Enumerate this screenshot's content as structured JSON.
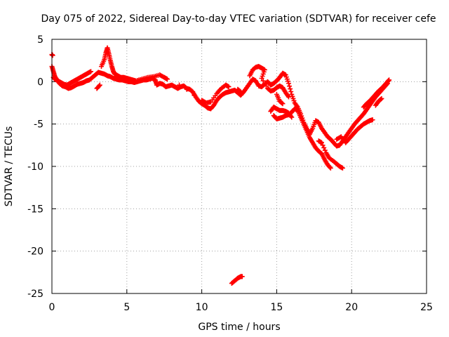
{
  "chart_data": {
    "type": "scatter",
    "title": "Day 075 of 2022, Sidereal Day-to-day VTEC variation (SDTVAR) for receiver cefe",
    "xlabel": "GPS time / hours",
    "ylabel": "SDTVAR / TECUs",
    "xlim": [
      0,
      25
    ],
    "ylim": [
      -25,
      5
    ],
    "x_ticks": [
      0,
      5,
      10,
      15,
      20,
      25
    ],
    "y_ticks": [
      5,
      0,
      -5,
      -10,
      -15,
      -20,
      -25
    ],
    "grid": true,
    "marker": "plus",
    "series_color": "#ff0000",
    "series": [
      {
        "name": "main trace",
        "points": [
          [
            0.0,
            1.8
          ],
          [
            0.1,
            1.2
          ],
          [
            0.2,
            0.6
          ],
          [
            0.35,
            0.2
          ],
          [
            0.5,
            -0.2
          ],
          [
            0.7,
            -0.5
          ],
          [
            0.9,
            -0.6
          ],
          [
            1.1,
            -0.8
          ],
          [
            1.3,
            -0.7
          ],
          [
            1.5,
            -0.5
          ],
          [
            1.7,
            -0.3
          ],
          [
            1.9,
            -0.2
          ],
          [
            2.1,
            -0.1
          ],
          [
            2.3,
            0.1
          ],
          [
            2.5,
            0.2
          ],
          [
            2.7,
            0.5
          ],
          [
            2.9,
            0.8
          ],
          [
            3.1,
            1.1
          ],
          [
            3.3,
            1.0
          ],
          [
            3.5,
            0.9
          ],
          [
            3.7,
            0.7
          ],
          [
            3.9,
            0.6
          ],
          [
            4.1,
            0.4
          ],
          [
            4.3,
            0.3
          ],
          [
            4.5,
            0.2
          ],
          [
            4.7,
            0.2
          ],
          [
            4.9,
            0.1
          ],
          [
            5.1,
            0.0
          ],
          [
            5.3,
            0.0
          ],
          [
            5.5,
            -0.1
          ],
          [
            5.7,
            0.0
          ],
          [
            5.9,
            0.1
          ],
          [
            6.1,
            0.2
          ],
          [
            6.3,
            0.2
          ],
          [
            6.5,
            0.3
          ],
          [
            6.7,
            0.4
          ],
          [
            6.9,
            0.2
          ],
          [
            7.0,
            -0.4
          ],
          [
            7.2,
            -0.2
          ],
          [
            7.4,
            -0.3
          ],
          [
            7.6,
            -0.6
          ],
          [
            7.8,
            -0.5
          ],
          [
            8.0,
            -0.4
          ],
          [
            8.2,
            -0.6
          ],
          [
            8.4,
            -0.8
          ],
          [
            8.6,
            -0.6
          ],
          [
            8.8,
            -0.5
          ],
          [
            9.0,
            -0.8
          ],
          [
            9.2,
            -0.9
          ],
          [
            9.4,
            -1.2
          ],
          [
            9.6,
            -1.8
          ],
          [
            9.8,
            -2.3
          ],
          [
            10.0,
            -2.6
          ],
          [
            10.2,
            -2.8
          ],
          [
            10.4,
            -3.1
          ],
          [
            10.6,
            -3.2
          ],
          [
            10.8,
            -2.8
          ],
          [
            11.0,
            -2.2
          ],
          [
            11.2,
            -1.8
          ],
          [
            11.4,
            -1.5
          ],
          [
            11.6,
            -1.3
          ],
          [
            11.8,
            -1.2
          ],
          [
            12.0,
            -1.1
          ],
          [
            12.2,
            -1.0
          ],
          [
            12.4,
            -1.3
          ],
          [
            12.6,
            -1.6
          ],
          [
            12.8,
            -1.2
          ],
          [
            13.0,
            -0.7
          ],
          [
            13.2,
            -0.2
          ],
          [
            13.4,
            0.3
          ],
          [
            13.6,
            0.1
          ],
          [
            13.8,
            -0.5
          ],
          [
            14.0,
            -0.6
          ],
          [
            14.2,
            -0.3
          ],
          [
            14.4,
            0.0
          ],
          [
            14.6,
            -0.4
          ],
          [
            14.8,
            -0.2
          ],
          [
            15.0,
            0.1
          ],
          [
            15.2,
            0.5
          ],
          [
            15.4,
            1.0
          ],
          [
            15.6,
            0.8
          ],
          [
            15.8,
            -0.2
          ],
          [
            16.0,
            -1.5
          ],
          [
            16.2,
            -2.5
          ],
          [
            16.4,
            -3.0
          ],
          [
            16.6,
            -3.8
          ],
          [
            16.8,
            -4.8
          ],
          [
            17.0,
            -5.5
          ],
          [
            17.2,
            -6.2
          ],
          [
            17.4,
            -5.5
          ],
          [
            17.6,
            -4.6
          ],
          [
            17.8,
            -4.8
          ],
          [
            18.0,
            -5.5
          ],
          [
            18.2,
            -6.0
          ],
          [
            18.4,
            -6.5
          ],
          [
            18.6,
            -6.8
          ],
          [
            18.8,
            -7.2
          ],
          [
            19.0,
            -7.6
          ],
          [
            19.2,
            -7.5
          ],
          [
            19.4,
            -7.0
          ],
          [
            19.6,
            -6.5
          ],
          [
            19.8,
            -6.0
          ],
          [
            20.0,
            -5.5
          ],
          [
            20.2,
            -5.0
          ],
          [
            20.4,
            -4.6
          ],
          [
            20.6,
            -4.2
          ],
          [
            20.8,
            -3.8
          ],
          [
            21.0,
            -3.3
          ],
          [
            21.2,
            -2.8
          ],
          [
            21.4,
            -2.3
          ],
          [
            21.6,
            -1.8
          ],
          [
            21.8,
            -1.4
          ],
          [
            22.0,
            -1.0
          ],
          [
            22.2,
            -0.6
          ],
          [
            22.4,
            -0.2
          ]
        ]
      },
      {
        "name": "secondary arcs",
        "points": [
          [
            0.0,
            3.2
          ],
          [
            0.05,
            3.1
          ],
          [
            0.1,
            0.5
          ],
          [
            0.2,
            0.3
          ],
          [
            0.4,
            0.1
          ],
          [
            0.6,
            -0.1
          ],
          [
            0.8,
            -0.3
          ],
          [
            1.0,
            -0.4
          ],
          [
            1.2,
            -0.2
          ],
          [
            1.4,
            0.0
          ],
          [
            1.6,
            0.2
          ],
          [
            1.8,
            0.4
          ],
          [
            2.0,
            0.6
          ],
          [
            2.2,
            0.8
          ],
          [
            2.4,
            1.0
          ],
          [
            2.6,
            1.2
          ],
          [
            3.0,
            -0.8
          ],
          [
            3.2,
            -0.4
          ],
          [
            3.3,
            1.8
          ],
          [
            3.5,
            2.6
          ],
          [
            3.6,
            3.4
          ],
          [
            3.7,
            4.0
          ],
          [
            3.8,
            3.3
          ],
          [
            3.9,
            2.5
          ],
          [
            4.0,
            1.8
          ],
          [
            4.1,
            1.2
          ],
          [
            4.2,
            0.9
          ],
          [
            4.4,
            0.7
          ],
          [
            4.6,
            0.5
          ],
          [
            4.8,
            0.5
          ],
          [
            5.0,
            0.4
          ],
          [
            5.2,
            0.3
          ],
          [
            5.4,
            0.2
          ],
          [
            5.6,
            0.1
          ],
          [
            6.0,
            0.3
          ],
          [
            6.4,
            0.5
          ],
          [
            6.8,
            0.6
          ],
          [
            7.2,
            0.8
          ],
          [
            7.5,
            0.5
          ],
          [
            7.7,
            0.3
          ],
          [
            8.5,
            -0.4
          ],
          [
            9.0,
            -0.9
          ],
          [
            9.5,
            -1.6
          ],
          [
            10.0,
            -2.2
          ],
          [
            10.3,
            -2.5
          ],
          [
            10.6,
            -2.4
          ],
          [
            11.0,
            -1.4
          ],
          [
            11.3,
            -0.8
          ],
          [
            11.6,
            -0.4
          ],
          [
            11.8,
            -0.6
          ],
          [
            12.4,
            -0.9
          ],
          [
            12.6,
            -1.2
          ],
          [
            13.2,
            0.7
          ],
          [
            13.4,
            1.4
          ],
          [
            13.6,
            1.7
          ],
          [
            13.8,
            1.8
          ],
          [
            14.0,
            1.6
          ],
          [
            14.2,
            1.4
          ],
          [
            14.0,
            0.4
          ],
          [
            14.4,
            -0.8
          ],
          [
            14.6,
            -1.1
          ],
          [
            14.8,
            -1.0
          ],
          [
            15.0,
            -0.7
          ],
          [
            15.2,
            -0.5
          ],
          [
            15.4,
            -0.7
          ],
          [
            15.6,
            -1.3
          ],
          [
            15.8,
            -1.8
          ],
          [
            15.0,
            -1.5
          ],
          [
            15.2,
            -2.3
          ],
          [
            15.4,
            -2.6
          ],
          [
            14.6,
            -3.5
          ],
          [
            14.8,
            -3.0
          ],
          [
            15.0,
            -3.2
          ],
          [
            15.2,
            -3.4
          ],
          [
            15.4,
            -3.4
          ],
          [
            15.6,
            -3.5
          ],
          [
            15.8,
            -3.7
          ],
          [
            16.0,
            -4.2
          ],
          [
            14.8,
            -4.0
          ],
          [
            15.0,
            -4.4
          ],
          [
            15.2,
            -4.3
          ],
          [
            15.4,
            -4.2
          ],
          [
            15.6,
            -4.0
          ],
          [
            15.8,
            -3.9
          ],
          [
            16.0,
            -3.6
          ],
          [
            16.2,
            -3.2
          ],
          [
            16.4,
            -3.4
          ],
          [
            16.6,
            -4.2
          ],
          [
            16.8,
            -5.0
          ],
          [
            17.0,
            -5.8
          ],
          [
            17.2,
            -6.6
          ],
          [
            17.4,
            -7.2
          ],
          [
            17.6,
            -7.8
          ],
          [
            17.8,
            -8.2
          ],
          [
            18.0,
            -8.5
          ],
          [
            18.2,
            -9.2
          ],
          [
            18.4,
            -9.8
          ],
          [
            18.6,
            -10.2
          ],
          [
            17.8,
            -7.0
          ],
          [
            18.0,
            -7.2
          ],
          [
            18.3,
            -8.4
          ],
          [
            18.5,
            -9.0
          ],
          [
            18.8,
            -9.4
          ],
          [
            19.0,
            -9.7
          ],
          [
            19.2,
            -10.0
          ],
          [
            19.4,
            -10.2
          ],
          [
            19.0,
            -6.8
          ],
          [
            19.3,
            -6.5
          ],
          [
            19.6,
            -7.2
          ],
          [
            19.8,
            -6.8
          ],
          [
            20.0,
            -6.4
          ],
          [
            20.2,
            -6.0
          ],
          [
            20.4,
            -5.6
          ],
          [
            20.6,
            -5.3
          ],
          [
            20.8,
            -5.0
          ],
          [
            21.0,
            -4.8
          ],
          [
            21.2,
            -4.6
          ],
          [
            21.4,
            -4.5
          ],
          [
            20.8,
            -3.0
          ],
          [
            21.0,
            -2.6
          ],
          [
            21.2,
            -2.3
          ],
          [
            21.4,
            -1.9
          ],
          [
            21.6,
            -1.5
          ],
          [
            21.8,
            -1.1
          ],
          [
            22.0,
            -0.8
          ],
          [
            22.2,
            -0.4
          ],
          [
            22.4,
            0.0
          ],
          [
            22.5,
            0.2
          ],
          [
            21.6,
            -2.8
          ],
          [
            21.8,
            -2.3
          ],
          [
            22.0,
            -2.0
          ],
          [
            12.0,
            -23.8
          ],
          [
            12.2,
            -23.5
          ],
          [
            12.4,
            -23.2
          ],
          [
            12.6,
            -23.0
          ],
          [
            12.7,
            -23.0
          ]
        ]
      }
    ]
  }
}
